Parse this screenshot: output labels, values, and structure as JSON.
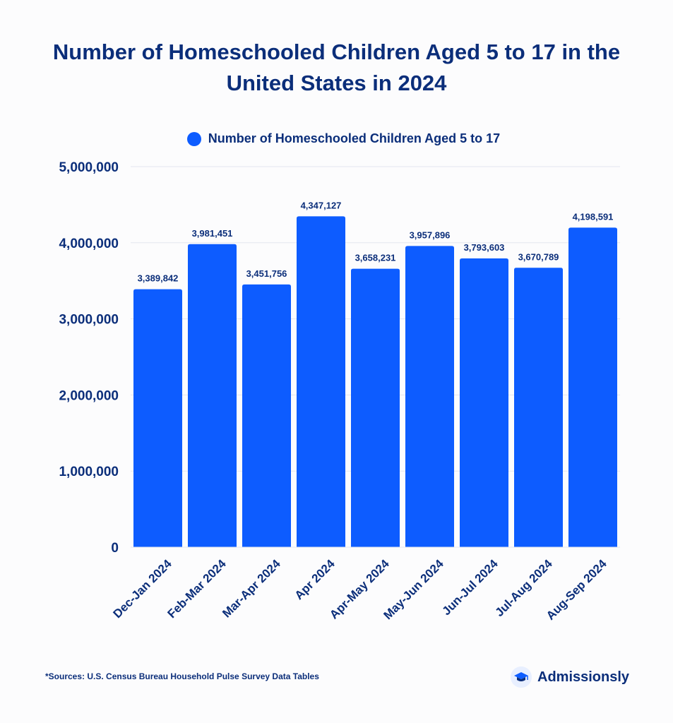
{
  "title_lines": [
    "Number of Homeschooled Children Aged 5 to 17 in the",
    "United States in 2024"
  ],
  "legend": {
    "label": "Number of Homeschooled Children Aged 5 to 17"
  },
  "footnote": "*Sources: U.S. Census Bureau Household Pulse Survey Data Tables",
  "brand": {
    "name": "Admissionsly",
    "icon": "graduation-cap-icon"
  },
  "colors": {
    "bar": "#0d5cff",
    "text": "#0b2e7a",
    "grid": "#e3e6ee"
  },
  "chart_data": {
    "type": "bar",
    "title": "Number of Homeschooled Children Aged 5 to 17 in the United States in 2024",
    "categories": [
      "Dec-Jan 2024",
      "Feb-Mar 2024",
      "Mar-Apr 2024",
      "Apr 2024",
      "Apr-May 2024",
      "May-Jun 2024",
      "Jun-Jul 2024",
      "Jul-Aug 2024",
      "Aug-Sep 2024"
    ],
    "series": [
      {
        "name": "Number of Homeschooled Children Aged 5 to 17",
        "values": [
          3389842,
          3981451,
          3451756,
          4347127,
          3658231,
          3957896,
          3793603,
          3670789,
          4198591
        ],
        "data_labels": [
          "3,389,842",
          "3,981,451",
          "3,451,756",
          "4,347,127",
          "3,658,231",
          "3,957,896",
          "3,793,603",
          "3,670,789",
          "4,198,591"
        ]
      }
    ],
    "yticks": [
      0,
      1000000,
      2000000,
      3000000,
      4000000,
      5000000
    ],
    "ytick_labels": [
      "0",
      "1,000,000",
      "2,000,000",
      "3,000,000",
      "4,000,000",
      "5,000,000"
    ],
    "ylim": [
      0,
      5000000
    ],
    "grid": true,
    "legend_position": "top"
  }
}
